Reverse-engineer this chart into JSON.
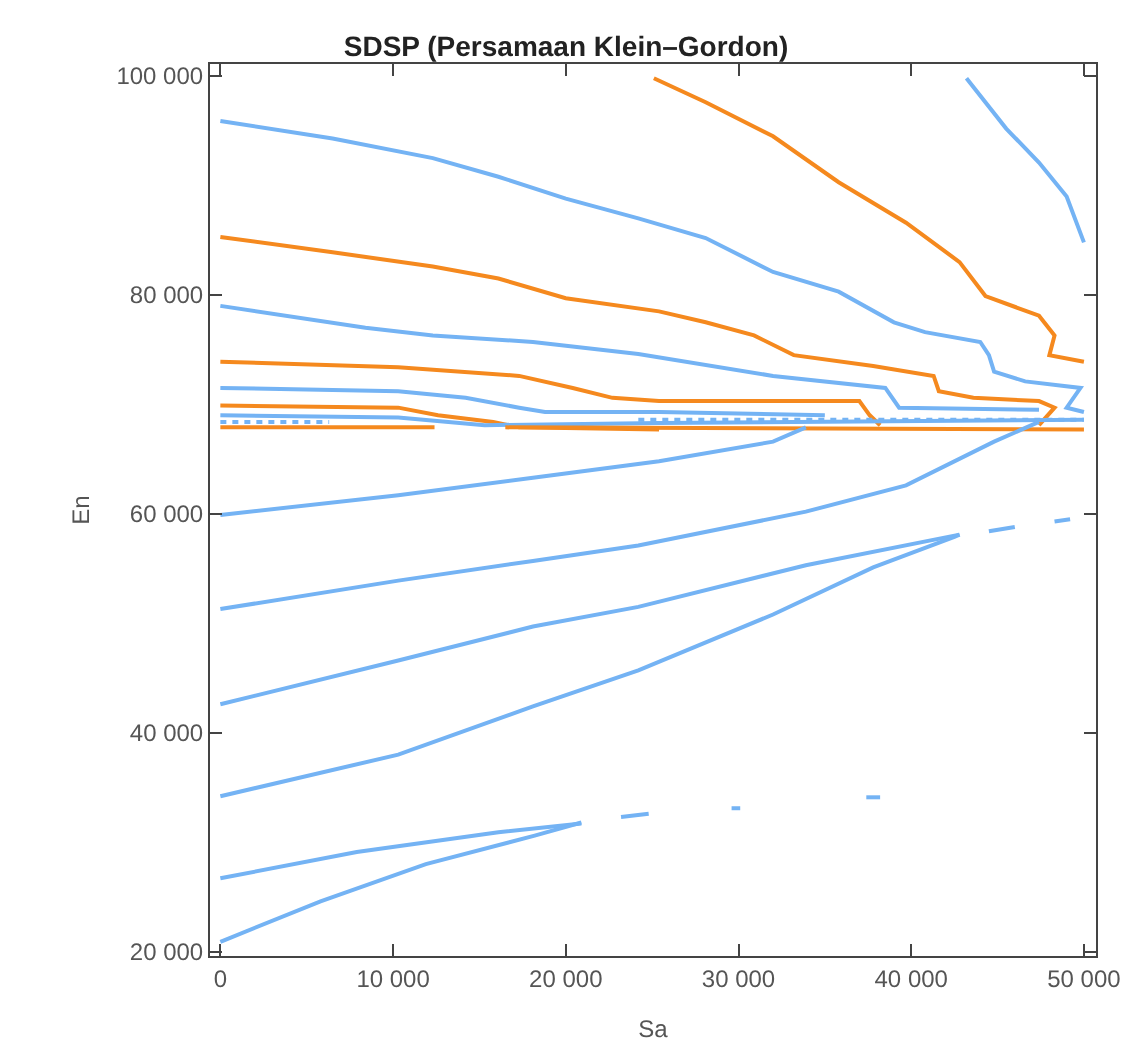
{
  "chart_data": {
    "type": "line",
    "title": "SDSP (Persamaan Klein–Gordon)",
    "xlabel": "Sa",
    "ylabel": "En",
    "xlim": [
      -600,
      50700
    ],
    "ylim": [
      19600,
      101100
    ],
    "xticks": [
      0,
      {
        "value": 10000,
        "label": "10 000"
      },
      {
        "value": 20000,
        "label": "20 000"
      },
      {
        "value": 30000,
        "label": "30 000"
      },
      {
        "value": 40000,
        "label": "40 000"
      },
      {
        "value": 50000,
        "label": "50 000"
      }
    ],
    "yticks": [
      {
        "value": 20000,
        "label": "20 000"
      },
      {
        "value": 40000,
        "label": "40 000"
      },
      {
        "value": 60000,
        "label": "60 000"
      },
      {
        "value": 80000,
        "label": "80 000"
      },
      {
        "value": 100000,
        "label": "100 000"
      }
    ],
    "grid": false,
    "series": [
      {
        "color": "#74b3f4",
        "x": [
          0,
          6500,
          12300,
          16100,
          20000,
          24200,
          28100,
          32000,
          35800,
          39000,
          40800,
          44000,
          44500,
          44800,
          46600,
          49800,
          49000,
          50000
        ],
        "values": [
          95900,
          94300,
          92500,
          90800,
          88800,
          87000,
          85200,
          82100,
          80300,
          77500,
          76600,
          75700,
          74500,
          73000,
          72100,
          71500,
          69700,
          69300
        ]
      },
      {
        "color": "#f5891e",
        "x": [
          25100,
          28100,
          32000,
          35800,
          39700,
          42800,
          44300,
          47400,
          48300,
          48000,
          50000
        ],
        "values": [
          99800,
          97600,
          94500,
          90300,
          86600,
          83000,
          79900,
          78100,
          76300,
          74500,
          73900
        ]
      },
      {
        "color": "#74b3f4",
        "x": [
          43200,
          45500,
          47400,
          49000,
          50000
        ],
        "values": [
          99800,
          95200,
          92100,
          89000,
          84800
        ]
      },
      {
        "color": "#f5891e",
        "x": [
          0,
          6500,
          12300,
          16100,
          20000,
          25400,
          28100,
          30900,
          33200,
          37800,
          41300,
          41600,
          43600,
          47400,
          48300,
          47400
        ],
        "values": [
          85300,
          83900,
          82600,
          81500,
          79700,
          78500,
          77500,
          76300,
          74500,
          73500,
          72600,
          71200,
          70600,
          70300,
          69700,
          68100
        ]
      },
      {
        "color": "#74b3f4",
        "x": [
          0,
          8400,
          12300,
          18100,
          24200,
          32000,
          38500,
          39300,
          47400
        ],
        "values": [
          79000,
          77000,
          76300,
          75700,
          74600,
          72600,
          71500,
          69700,
          69500
        ]
      },
      {
        "color": "#f5891e",
        "x": [
          0,
          10300,
          17300,
          20400,
          22700,
          25400,
          37000,
          37600,
          38200
        ],
        "values": [
          73900,
          73400,
          72600,
          71500,
          70600,
          70300,
          70300,
          69000,
          68100
        ]
      },
      {
        "color": "#74b3f4",
        "x": [
          0,
          10300,
          14200,
          17300,
          18800,
          25400,
          35000
        ],
        "values": [
          71500,
          71200,
          70600,
          69700,
          69300,
          69300,
          69000
        ]
      },
      {
        "color": "#f5891e",
        "x": [
          0,
          10300,
          12600,
          15800,
          17300,
          25400
        ],
        "values": [
          69900,
          69700,
          69000,
          68400,
          67900,
          67700
        ]
      },
      {
        "color": "#74b3f4",
        "x": [
          0,
          10300,
          15300,
          25400,
          50000
        ],
        "values": [
          69000,
          68800,
          68100,
          68300,
          68600
        ]
      },
      {
        "color": "#74b3f4",
        "line_style": "dotted",
        "x": [
          0,
          6300,
          6400,
          24200,
          35000,
          38200,
          50000
        ],
        "values": [
          68400,
          68400,
          null,
          68600,
          68600,
          68600,
          68600
        ]
      },
      {
        "color": "#f5891e",
        "x": [
          0,
          12400,
          12500,
          16500,
          50000
        ],
        "values": [
          67900,
          67900,
          null,
          67900,
          67700
        ]
      },
      {
        "color": "#74b3f4",
        "x": [
          0,
          10300,
          18100,
          25400,
          32000,
          33900
        ],
        "values": [
          59900,
          61700,
          63300,
          64800,
          66600,
          67900
        ]
      },
      {
        "color": "#74b3f4",
        "x": [
          0,
          10300,
          18100,
          24200,
          33900,
          39700,
          44800,
          47400
        ],
        "values": [
          51300,
          53900,
          55700,
          57100,
          60200,
          62600,
          66600,
          68400
        ]
      },
      {
        "color": "#74b3f4",
        "x": [
          0,
          10300,
          18100,
          24200,
          33900,
          42800,
          43600,
          44500,
          46000,
          47000,
          48300,
          49200
        ],
        "values": [
          42600,
          46600,
          49700,
          51500,
          55300,
          58100,
          null,
          58400,
          58800,
          null,
          59300,
          59500
        ]
      },
      {
        "color": "#74b3f4",
        "x": [
          0,
          10300,
          18100,
          24200,
          32000,
          37800,
          42500,
          42800
        ],
        "values": [
          34200,
          38000,
          42400,
          45700,
          50800,
          55100,
          57900,
          58100
        ]
      },
      {
        "color": "#74b3f4",
        "x": [
          0,
          7900,
          16100,
          20900,
          22000,
          23200,
          24800,
          27000,
          29600,
          30100,
          33000,
          37400,
          38200
        ],
        "values": [
          26700,
          29100,
          30900,
          31700,
          null,
          32300,
          32600,
          null,
          33100,
          33100,
          null,
          34100,
          34100
        ]
      },
      {
        "color": "#74b3f4",
        "x": [
          0,
          5800,
          11900,
          18200,
          20900
        ],
        "values": [
          20900,
          24600,
          28000,
          30600,
          31800
        ]
      }
    ]
  }
}
